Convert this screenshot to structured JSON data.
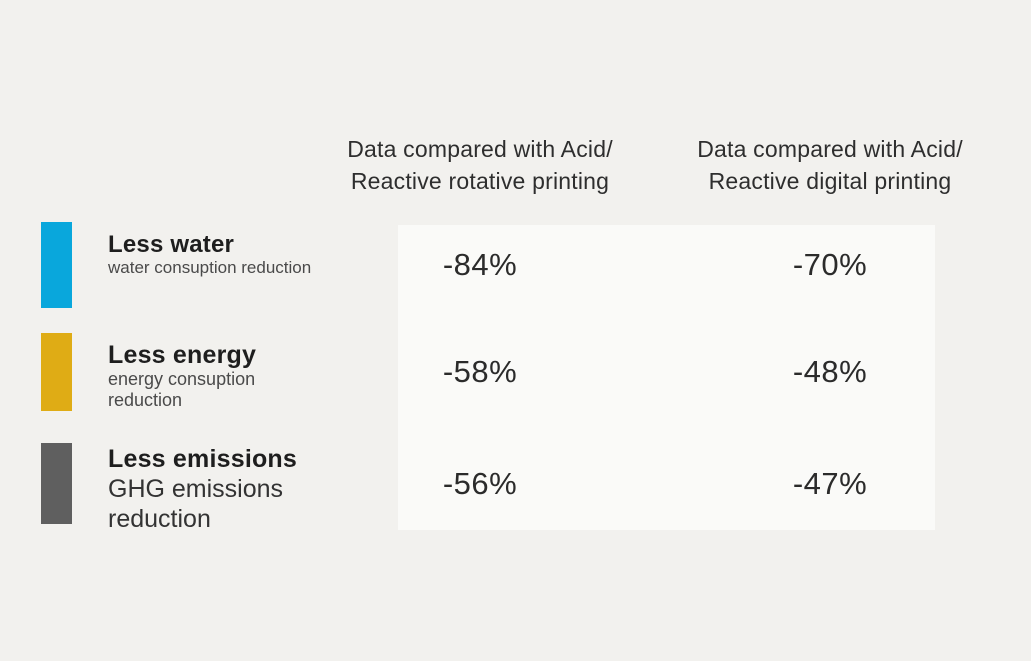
{
  "page": {
    "background": "#f2f1ee",
    "panel_background": "#fafaf8"
  },
  "table": {
    "column_headers": [
      {
        "line1": "Data compared with Acid/",
        "line2": "Reactive rotative printing"
      },
      {
        "line1": "Data compared with Acid/",
        "line2": "Reactive digital printing"
      }
    ],
    "rows": [
      {
        "title": "Less water",
        "subtitle": "water consuption reduction",
        "color": "#09a7dc",
        "values": [
          "-84%",
          "-70%"
        ]
      },
      {
        "title": "Less energy",
        "subtitle": "energy consuption reduction",
        "color": "#dfac15",
        "values": [
          "-58%",
          "-48%"
        ]
      },
      {
        "title": "Less emissions",
        "subtitle": "GHG emissions reduction",
        "color": "#5f5f5f",
        "values": [
          "-56%",
          "-47%"
        ]
      }
    ]
  },
  "chart_data": {
    "type": "table",
    "categories": [
      "Less water — water consuption reduction",
      "Less energy — energy consuption reduction",
      "Less emissions — GHG emissions reduction"
    ],
    "series": [
      {
        "name": "Data compared with Acid/Reactive rotative printing",
        "values": [
          -84,
          -58,
          -56
        ]
      },
      {
        "name": "Data compared with Acid/Reactive digital printing",
        "values": [
          -70,
          -48,
          -47
        ]
      }
    ],
    "unit": "%",
    "category_colors": [
      "#09a7dc",
      "#dfac15",
      "#5f5f5f"
    ],
    "legend_position": "none",
    "grid": false
  }
}
